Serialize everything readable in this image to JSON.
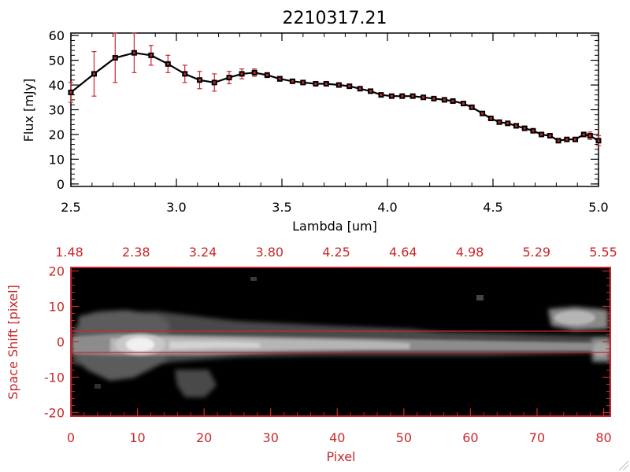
{
  "chart_data": [
    {
      "type": "line",
      "title": "2210317.21",
      "xlabel": "Lambda [um]",
      "ylabel": "Flux [mJy]",
      "xlim": [
        2.5,
        5.0
      ],
      "ylim": [
        -1,
        61
      ],
      "x_ticks": [
        "2.5",
        "3.0",
        "3.5",
        "4.0",
        "4.5",
        "5.0"
      ],
      "y_ticks": [
        "0",
        "10",
        "20",
        "30",
        "40",
        "50",
        "60"
      ],
      "grid": false,
      "series": [
        {
          "x": [
            2.5,
            2.61,
            2.71,
            2.8,
            2.88,
            2.96,
            3.04,
            3.11,
            3.18,
            3.25,
            3.31,
            3.37,
            3.43,
            3.49,
            3.55,
            3.6,
            3.66,
            3.71,
            3.77,
            3.82,
            3.87,
            3.92,
            3.97,
            4.02,
            4.07,
            4.12,
            4.17,
            4.22,
            4.27,
            4.31,
            4.36,
            4.4,
            4.45,
            4.49,
            4.53,
            4.57,
            4.61,
            4.65,
            4.69,
            4.73,
            4.77,
            4.81,
            4.85,
            4.89,
            4.93,
            4.96,
            5.0
          ],
          "y": [
            37,
            44.5,
            51,
            53,
            52,
            48.5,
            44.5,
            42,
            41,
            43,
            44.5,
            45,
            44,
            42.5,
            41.5,
            41,
            40.5,
            40.5,
            40,
            39.5,
            38.5,
            37.5,
            36,
            35.5,
            35.5,
            35.5,
            35,
            34.5,
            34,
            33.5,
            32.5,
            31,
            28.5,
            26.5,
            25,
            24.5,
            23.5,
            22.5,
            21.5,
            20,
            19.5,
            17.5,
            18,
            18,
            20,
            19.5,
            17.5
          ],
          "err": [
            4,
            9,
            10,
            8,
            4,
            3.5,
            3.5,
            3.5,
            3.5,
            2.5,
            2,
            1.5,
            1,
            1,
            0.8,
            0.8,
            0.8,
            0.8,
            0.8,
            0.8,
            0.8,
            0.8,
            0.8,
            0.8,
            0.8,
            0.8,
            0.8,
            0.8,
            0.8,
            0.8,
            0.8,
            0.8,
            0.8,
            0.8,
            0.8,
            0.8,
            0.8,
            0.8,
            0.8,
            0.8,
            0.8,
            0.8,
            0.8,
            0.8,
            0.8,
            1.5,
            2
          ]
        }
      ]
    },
    {
      "type": "heatmap",
      "xlabel": "Pixel",
      "ylabel": "Space Shift [pixel]",
      "xlim": [
        0,
        81
      ],
      "ylim": [
        -21,
        21
      ],
      "x_ticks": [
        "0",
        "10",
        "20",
        "30",
        "40",
        "50",
        "60",
        "70",
        "80"
      ],
      "y_ticks": [
        "-20",
        "-10",
        "0",
        "10",
        "20"
      ],
      "top_axis_ticks": [
        "1.48",
        "2.38",
        "3.24",
        "3.80",
        "4.25",
        "4.64",
        "4.98",
        "5.29",
        "5.55"
      ],
      "extraction_aperture_y": [
        -3,
        3
      ],
      "colors": {
        "axis": "#c8282d",
        "marker": "#c8282d"
      }
    }
  ]
}
